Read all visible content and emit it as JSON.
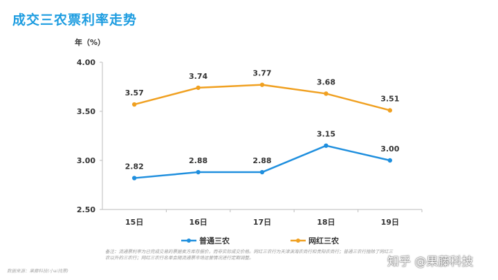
{
  "title": "成交三农票利率走势",
  "note": "备注：流通票利率为已完成交易的票据卖方库存报价，而非实际成交价格。网红三农行为天津滨海农商行和贵阳农商行；普通三农行指除了网红三农以外的三农行；网红三农行名单会随流通票市场运营情况进行定期调整。",
  "source": "数据来源：果藤科技(小ai找票)",
  "watermark": "知乎 @果藤科技",
  "chart_data": {
    "type": "line",
    "title": "成交三农票利率走势",
    "ylabel": "年（%）",
    "categories": [
      "15日",
      "16日",
      "17日",
      "18日",
      "19日"
    ],
    "ylim": [
      2.5,
      4.0
    ],
    "yticks": [
      "2.50",
      "3.00",
      "3.50",
      "4.00"
    ],
    "legend_position": "bottom",
    "series": [
      {
        "name": "普通三农",
        "color": "#1f8fde",
        "values": [
          2.82,
          2.88,
          2.88,
          3.15,
          3.0
        ],
        "labels": [
          "2.82",
          "2.88",
          "2.88",
          "3.15",
          "3.00"
        ]
      },
      {
        "name": "网红三农",
        "color": "#f0a020",
        "values": [
          3.57,
          3.74,
          3.77,
          3.68,
          3.51
        ],
        "labels": [
          "3.57",
          "3.74",
          "3.77",
          "3.68",
          "3.51"
        ]
      }
    ]
  }
}
